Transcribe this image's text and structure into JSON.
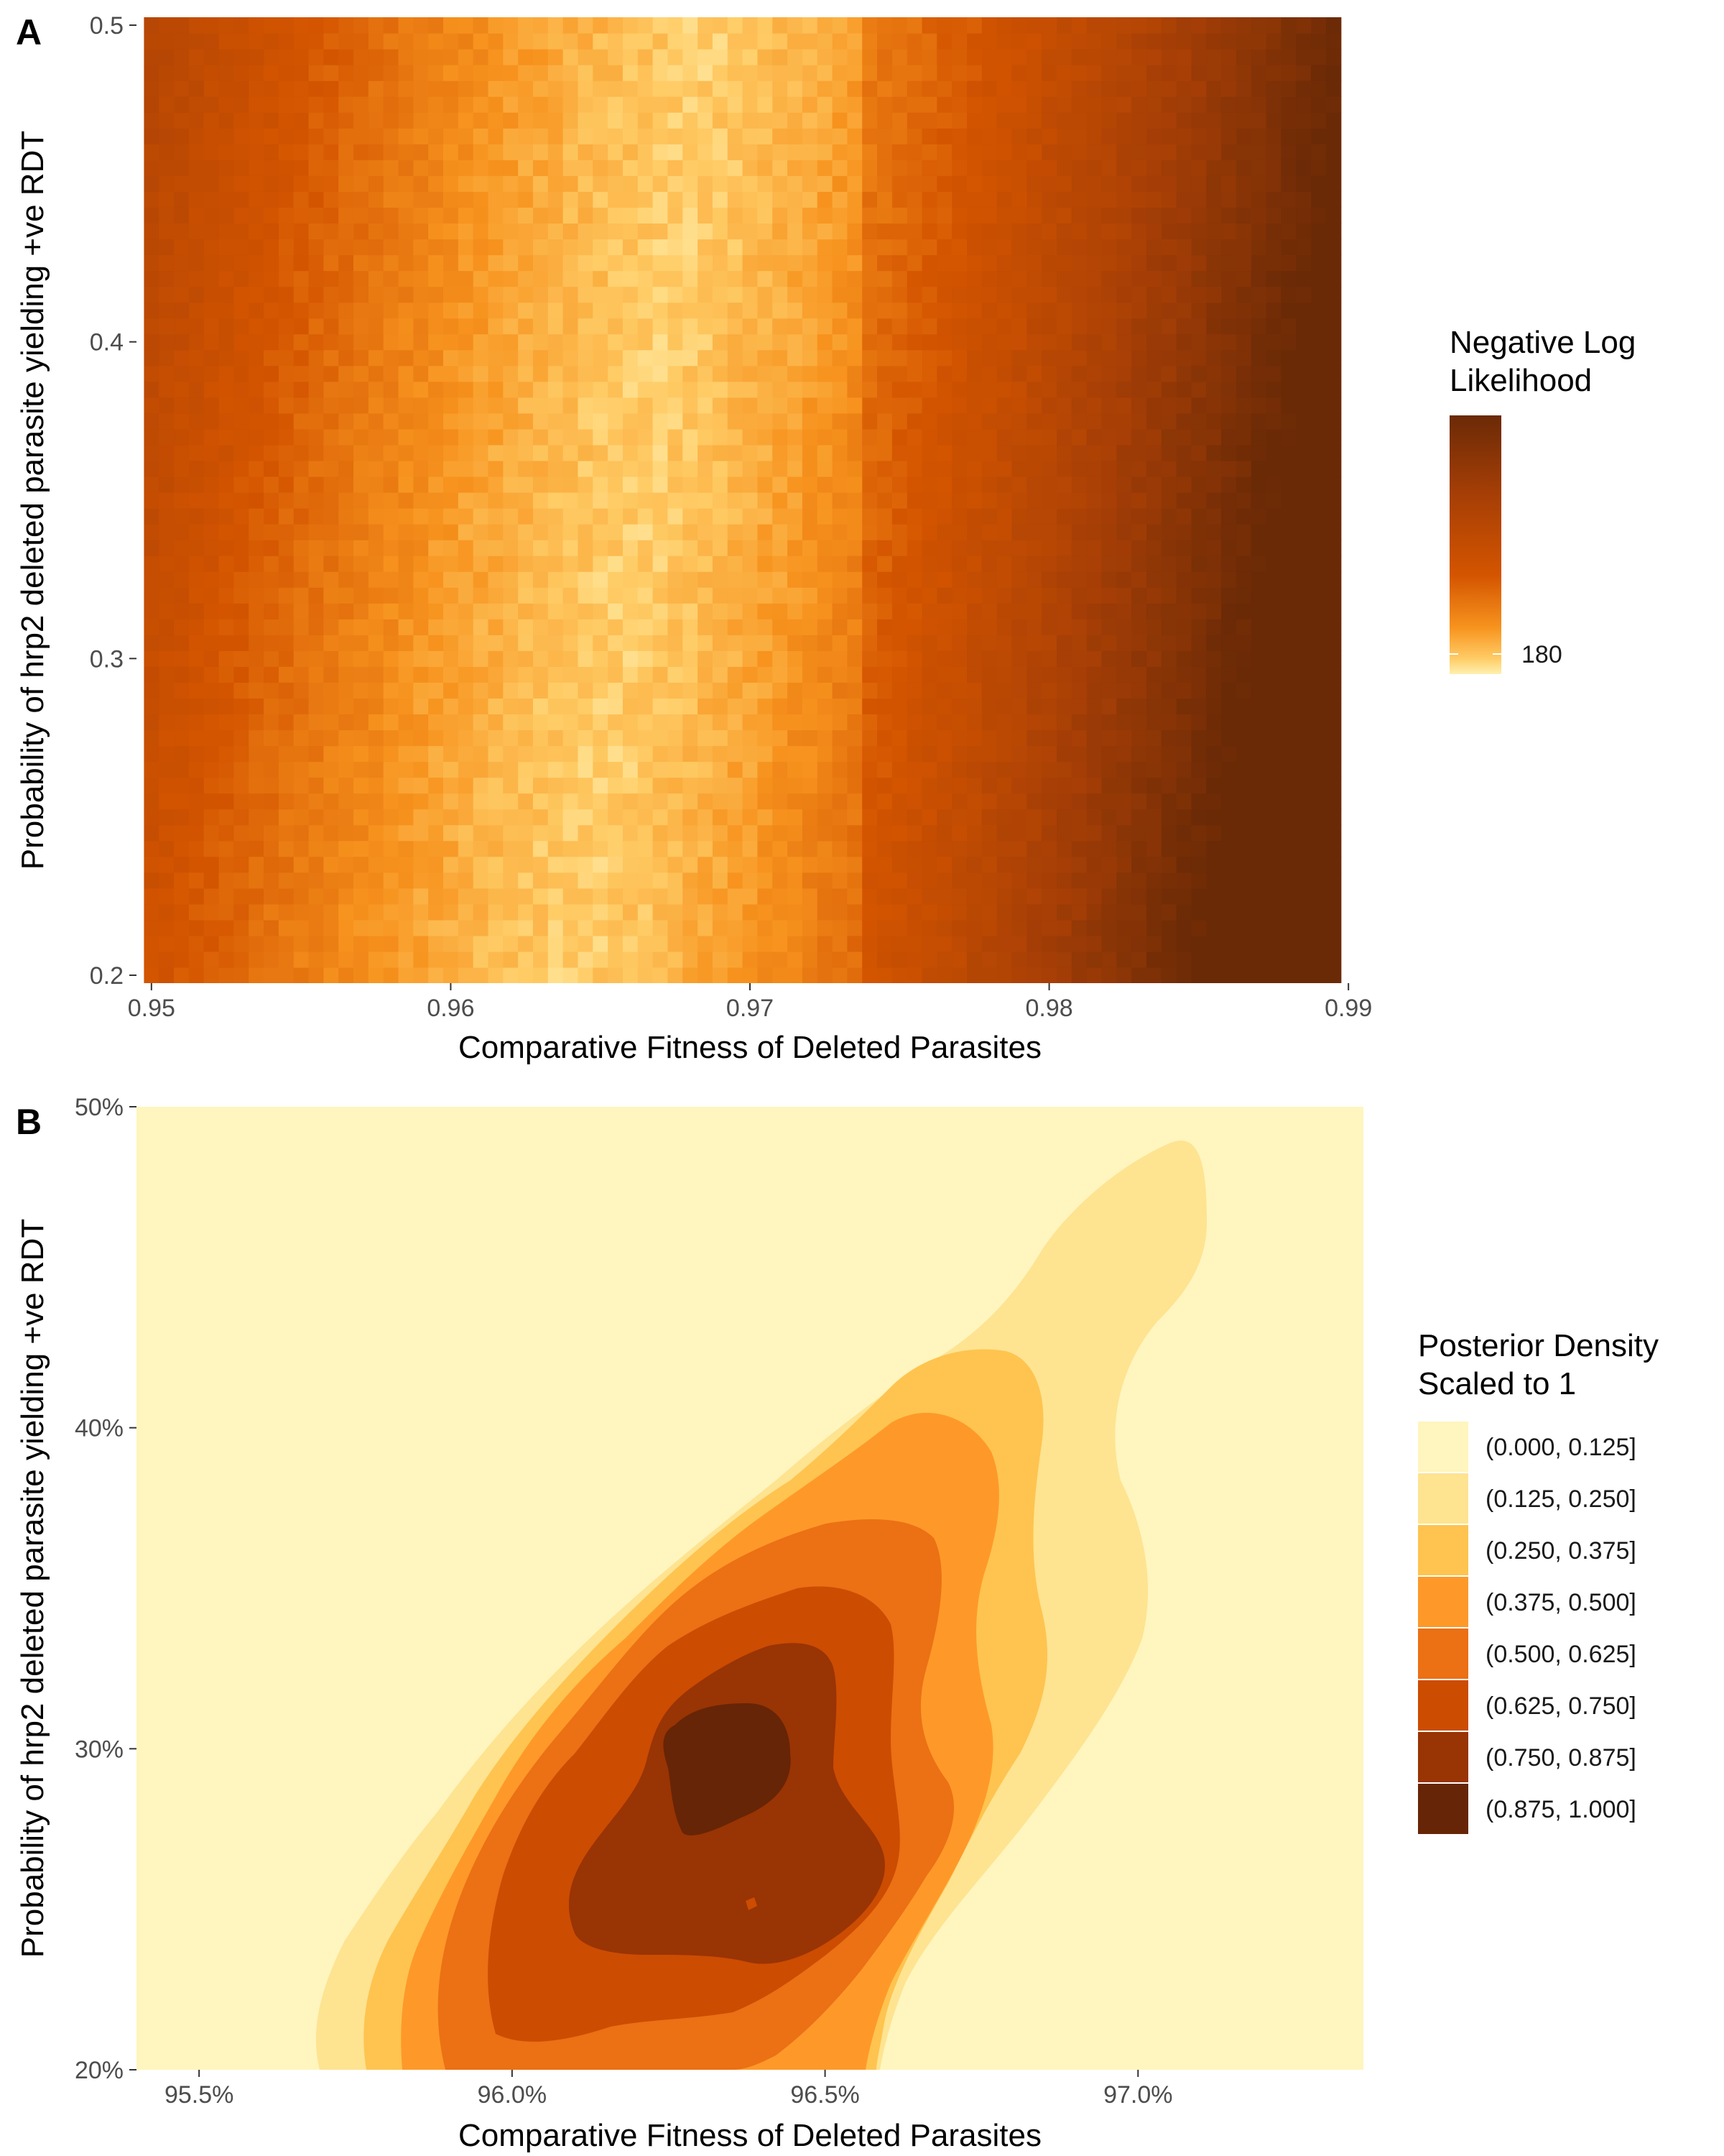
{
  "chart_data": [
    {
      "panel": "A",
      "type": "heatmap",
      "title": "",
      "xlabel": "Comparative Fitness of Deleted Parasites",
      "ylabel": "Probability of hrp2 deleted parasite yielding +ve RDT",
      "xlim": [
        0.95,
        0.99
      ],
      "ylim": [
        0.2,
        0.5
      ],
      "xticks": [
        0.95,
        0.96,
        0.97,
        0.98,
        0.99
      ],
      "xtick_labels": [
        "0.95",
        "0.96",
        "0.97",
        "0.98",
        "0.99"
      ],
      "yticks": [
        0.2,
        0.3,
        0.4,
        0.5
      ],
      "ytick_labels": [
        "0.2",
        "0.3",
        "0.4",
        "0.5"
      ],
      "grid": false,
      "legend": {
        "position": "right",
        "title_lines": [
          "Negative Log",
          "Likelihood"
        ],
        "break_value": 180,
        "break_label": "180",
        "colors": [
          "#fff0b0",
          "#ffcc66",
          "#f7931e",
          "#d45500",
          "#a53e06",
          "#6b2a06"
        ]
      },
      "cells": {
        "x_start": 0.95,
        "x_step": 0.0005,
        "nx": 80,
        "y_start": 0.2,
        "y_step": 0.005,
        "ny": 61,
        "minimum_ridge_y": [
          0.2,
          0.5
        ],
        "minimum_ridge_x": [
          0.9642,
          0.9685
        ],
        "approx_value_range": [
          174,
          194
        ],
        "max_corner": "bottom-right"
      }
    },
    {
      "panel": "B",
      "type": "contour",
      "title": "",
      "xlabel": "Comparative Fitness of Deleted Parasites",
      "ylabel": "Probability of hrp2 deleted parasite yielding +ve RDT",
      "xlim": [
        0.954,
        0.9736
      ],
      "ylim": [
        0.2,
        0.5
      ],
      "xticks": [
        0.955,
        0.96,
        0.965,
        0.97
      ],
      "xtick_labels": [
        "95.5%",
        "96.0%",
        "96.5%",
        "97.0%"
      ],
      "yticks": [
        0.2,
        0.3,
        0.4,
        0.5
      ],
      "ytick_labels": [
        "20%",
        "30%",
        "40%",
        "50%"
      ],
      "grid": false,
      "legend": {
        "position": "right",
        "title_lines": [
          "Posterior Density",
          "Scaled to 1"
        ],
        "bins": [
          {
            "label": "(0.000, 0.125]",
            "color": "#fff5be"
          },
          {
            "label": "(0.125, 0.250]",
            "color": "#fee391"
          },
          {
            "label": "(0.250, 0.375]",
            "color": "#fec44f"
          },
          {
            "label": "(0.375, 0.500]",
            "color": "#fe9929"
          },
          {
            "label": "(0.500, 0.625]",
            "color": "#ec7014"
          },
          {
            "label": "(0.625, 0.750]",
            "color": "#cc4c02"
          },
          {
            "label": "(0.750, 0.875]",
            "color": "#993404"
          },
          {
            "label": "(0.875, 1.000]",
            "color": "#662506"
          }
        ]
      },
      "density_peak": {
        "x": 0.9632,
        "y": 0.29,
        "value": 1.0
      },
      "density_secondary_mode": {
        "x": 0.9637,
        "y": 0.25
      }
    }
  ]
}
